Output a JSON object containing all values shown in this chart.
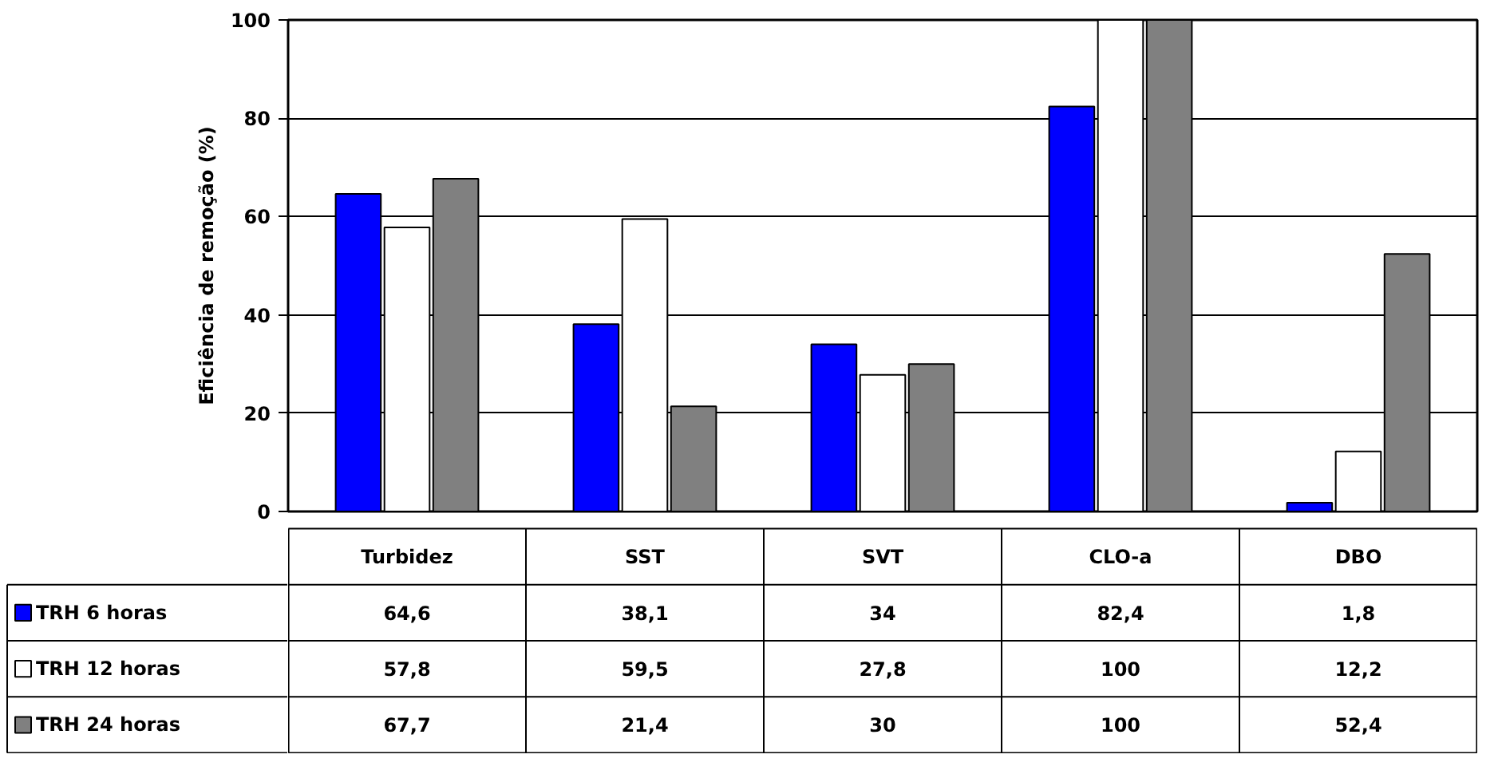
{
  "chart_data": {
    "type": "bar",
    "ylabel": "Eficiência de remoção (%)",
    "categories": [
      "Turbidez",
      "SST",
      "SVT",
      "CLO-a",
      "DBO"
    ],
    "series": [
      {
        "name": "TRH 6 horas",
        "color": "#0000ff",
        "values": [
          64.6,
          38.1,
          34,
          82.4,
          1.8
        ],
        "value_labels": [
          "64,6",
          "38,1",
          "34",
          "82,4",
          "1,8"
        ]
      },
      {
        "name": "TRH 12 horas",
        "color": "#ffffff",
        "values": [
          57.8,
          59.5,
          27.8,
          100,
          12.2
        ],
        "value_labels": [
          "57,8",
          "59,5",
          "27,8",
          "100",
          "12,2"
        ]
      },
      {
        "name": "TRH 24 horas",
        "color": "#808080",
        "values": [
          67.7,
          21.4,
          30,
          100,
          52.4
        ],
        "value_labels": [
          "67,7",
          "21,4",
          "30",
          "100",
          "52,4"
        ]
      }
    ],
    "ylim": [
      0,
      100
    ],
    "yticks": [
      0,
      20,
      40,
      60,
      80,
      100
    ],
    "grid": "y",
    "legend": "bottom left"
  }
}
